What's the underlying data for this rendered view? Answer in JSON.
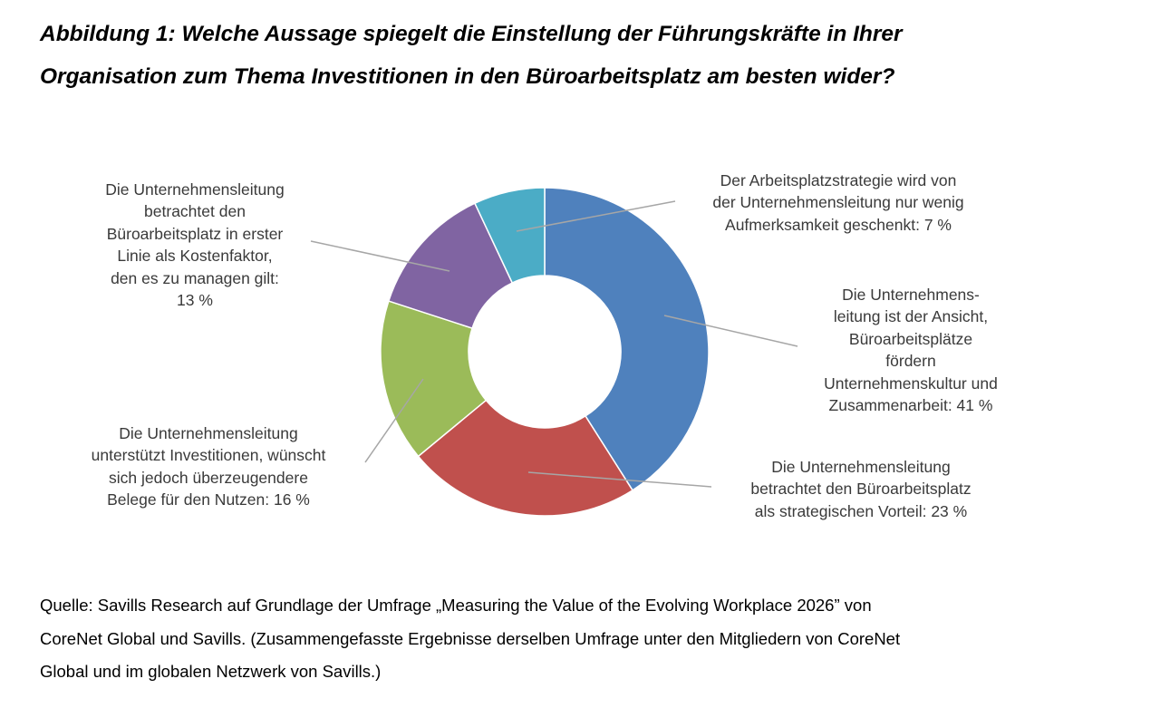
{
  "title_lines": [
    "Abbildung 1: Welche Aussage spiegelt die Einstellung der Führungskräfte in Ihrer",
    "Organisation zum Thema Investitionen in den Büroarbeitsplatz am besten wider?"
  ],
  "chart_data": {
    "type": "pie",
    "subtype": "donut",
    "title": "Abbildung 1: Welche Aussage spiegelt die Einstellung der Führungskräfte in Ihrer Organisation zum Thema Investitionen in den Büroarbeitsplatz am besten wider?",
    "slices": [
      {
        "value": 41,
        "color": "#4f81bd",
        "label_lines": [
          "Die Unternehmens-",
          "leitung ist der Ansicht,",
          "Büroarbeitsplätze",
          "fördern",
          "Unternehmenskultur und",
          "Zusammenarbeit: 41 %"
        ]
      },
      {
        "value": 23,
        "color": "#c0504d",
        "label_lines": [
          "Die Unternehmensleitung",
          "betrachtet den Büroarbeitsplatz",
          "als strategischen Vorteil: 23 %"
        ]
      },
      {
        "value": 16,
        "color": "#9bbb59",
        "label_lines": [
          "Die Unternehmensleitung",
          "unterstützt Investitionen, wünscht",
          "sich jedoch überzeugendere",
          "Belege für den Nutzen: 16 %"
        ]
      },
      {
        "value": 13,
        "color": "#8064a2",
        "label_lines": [
          "Die Unternehmensleitung",
          "betrachtet den",
          "Büroarbeitsplatz in erster",
          "Linie als Kostenfaktor,",
          "den es zu managen gilt:",
          "13 %"
        ]
      },
      {
        "value": 7,
        "color": "#4bacc6",
        "label_lines": [
          "Der Arbeitsplatzstrategie wird von",
          "der Unternehmensleitung nur wenig",
          "Aufmerksamkeit geschenkt: 7 %"
        ]
      }
    ],
    "legend": "none"
  },
  "source_lines": [
    "Quelle: Savills Research auf Grundlage der Umfrage „Measuring the Value of the Evolving Workplace 2026” von",
    "CoreNet Global und Savills. (Zusammengefasste Ergebnisse derselben Umfrage unter den Mitgliedern von CoreNet",
    "Global und im globalen Netzwerk von Savills.)"
  ]
}
